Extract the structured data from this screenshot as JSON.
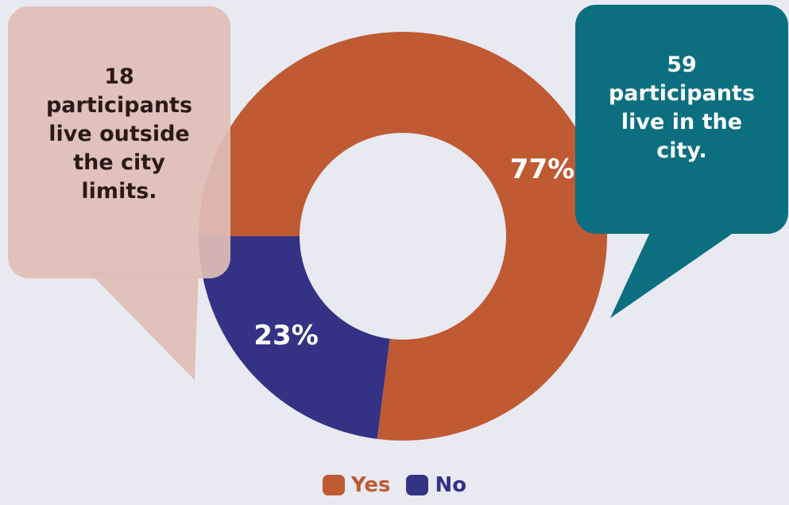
{
  "chart_data": {
    "type": "pie",
    "variant": "donut",
    "categories": [
      "Yes",
      "No"
    ],
    "values": [
      77,
      23
    ],
    "data_labels": [
      "77%",
      "23%"
    ],
    "colors": [
      "#bf5a33",
      "#343285"
    ],
    "legend_position": "bottom-center"
  },
  "callouts": {
    "left": {
      "lines": [
        "18",
        "participants",
        "live outside",
        "the city",
        "limits."
      ],
      "color": "#dcbab2"
    },
    "right": {
      "lines": [
        "59",
        "participants",
        "live in the",
        "city."
      ],
      "color": "#0b6f7f"
    }
  },
  "legend": [
    {
      "label": "Yes",
      "color": "#bf5a33"
    },
    {
      "label": "No",
      "color": "#343285"
    }
  ]
}
